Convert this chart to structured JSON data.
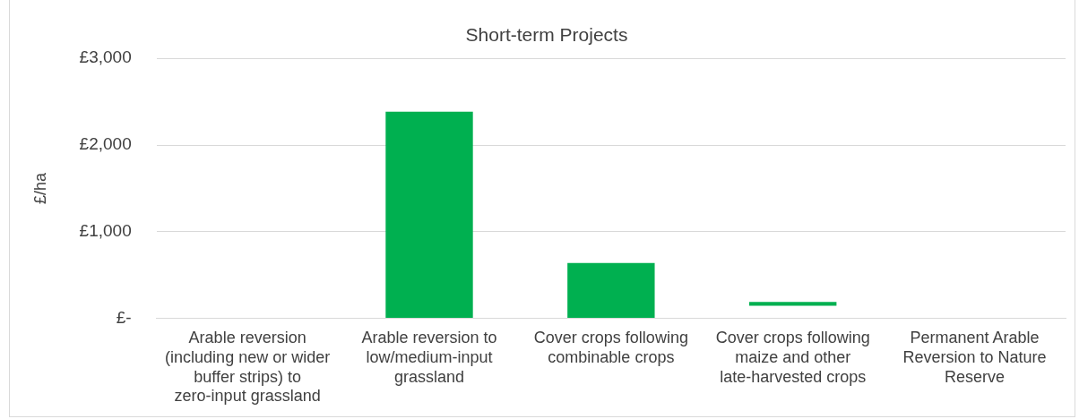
{
  "chart_data": {
    "type": "bar",
    "title": "Short-term Projects",
    "ylabel": "£/ha",
    "categories": [
      "Arable reversion (including new or wider buffer strips) to zero-input grassland",
      "Arable reversion to low/medium-input grassland",
      "Cover crops following combinable crops",
      "Cover crops following maize and other late-harvested crops",
      "Permanent Arable Reversion to Nature Reserve"
    ],
    "values": [
      null,
      2385,
      638,
      45,
      null
    ],
    "base": [
      null,
      0,
      0,
      145,
      null
    ],
    "color": "#00b050",
    "ylim": [
      0,
      3000
    ],
    "yticks": [
      {
        "value": 0,
        "label": "£-"
      },
      {
        "value": 1000,
        "label": "£1,000"
      },
      {
        "value": 2000,
        "label": "£2,000"
      },
      {
        "value": 3000,
        "label": "£3,000"
      }
    ],
    "grid": "y",
    "legend": false
  }
}
